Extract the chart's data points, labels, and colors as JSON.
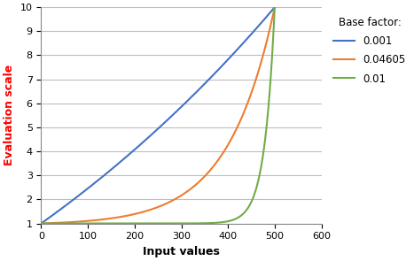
{
  "x_max": 500,
  "y_min": 1,
  "y_max": 10,
  "x_axis_max": 600,
  "base_factors": [
    0.001,
    0.04605,
    0.01
  ],
  "colors": [
    "#4472C4",
    "#ED7D31",
    "#70AD47"
  ],
  "labels": [
    "0.001",
    "0.04605",
    "0.01"
  ],
  "xlabel": "Input values",
  "ylabel": "Evaluation scale",
  "ylabel_color": "#FF0000",
  "legend_title": "Base factor:",
  "x_ticks": [
    0,
    100,
    200,
    300,
    400,
    500,
    600
  ],
  "y_ticks": [
    1,
    2,
    3,
    4,
    5,
    6,
    7,
    8,
    9,
    10
  ],
  "grid_color": "#BEBEBE",
  "line_width": 1.5,
  "background_color": "#FFFFFF"
}
